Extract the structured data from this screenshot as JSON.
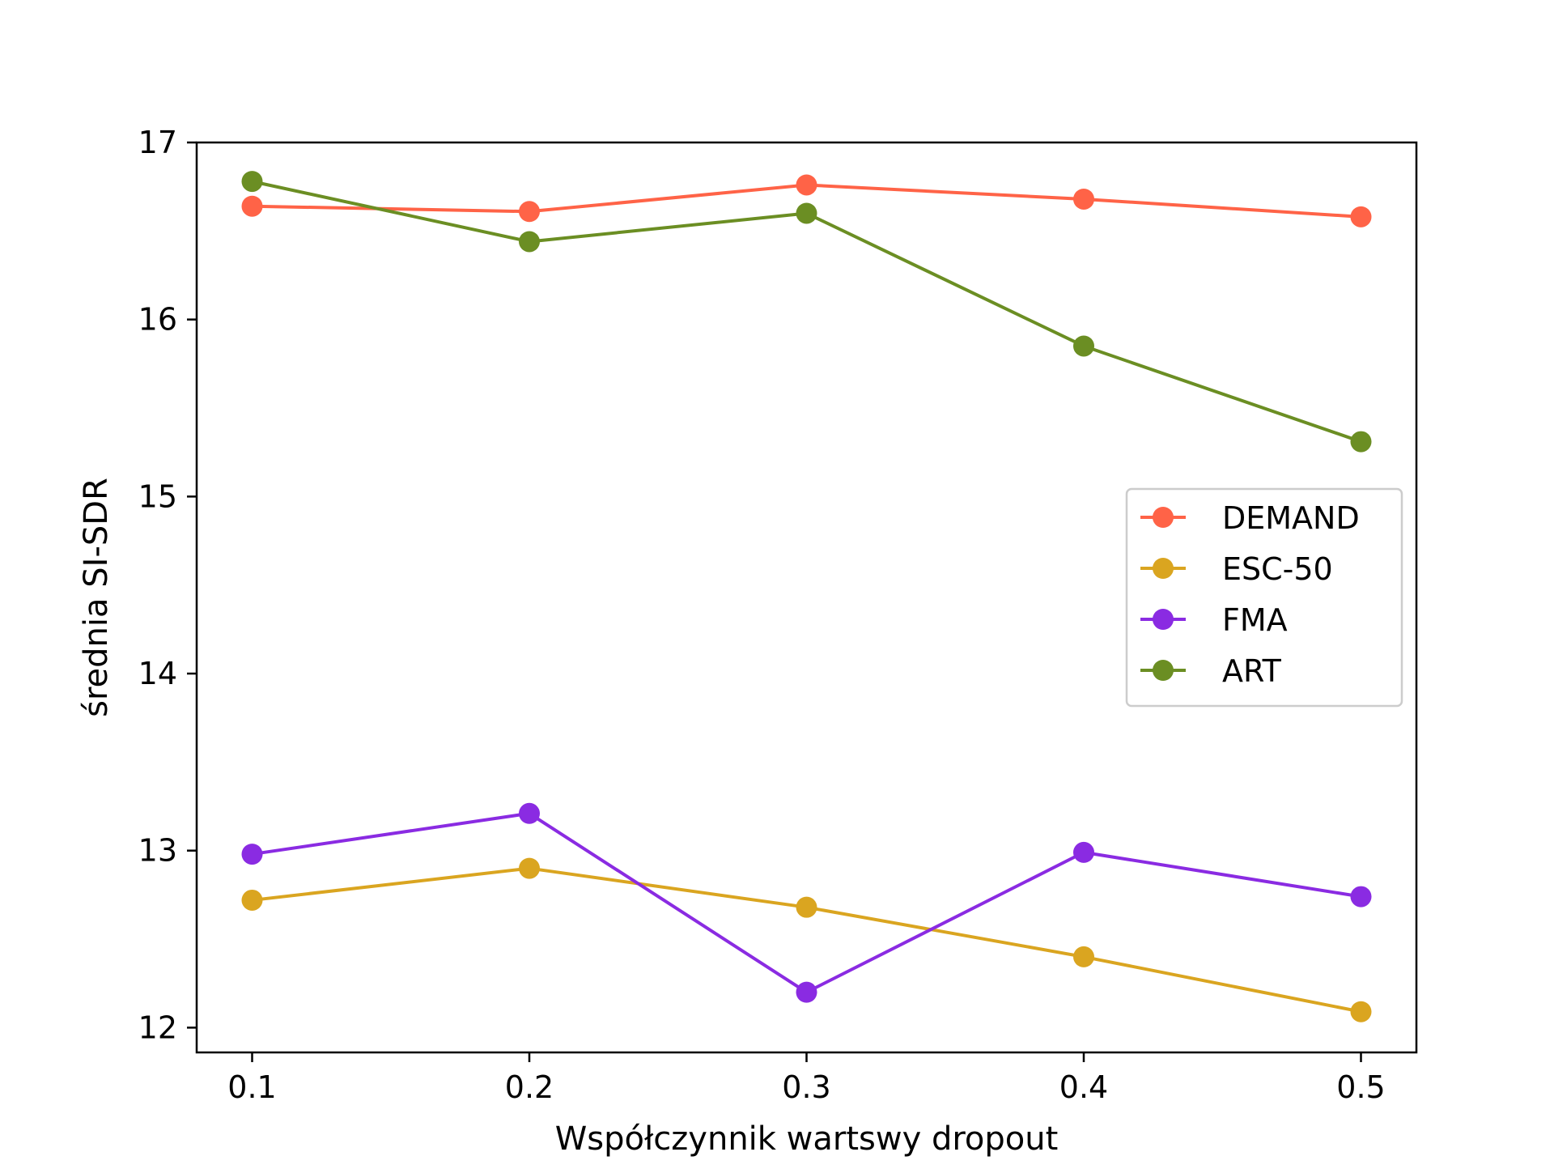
{
  "chart_data": {
    "type": "line",
    "title": "",
    "xlabel": "Współczynnik wartswy dropout",
    "ylabel": "średnia SI-SDR",
    "x": [
      0.1,
      0.2,
      0.3,
      0.4,
      0.5
    ],
    "x_tick_labels": [
      "0.1",
      "0.2",
      "0.3",
      "0.4",
      "0.5"
    ],
    "xlim": [
      0.08,
      0.52
    ],
    "ylim": [
      11.86,
      17.0
    ],
    "y_ticks": [
      12,
      13,
      14,
      15,
      16,
      17
    ],
    "y_tick_labels": [
      "12",
      "13",
      "14",
      "15",
      "16",
      "17"
    ],
    "grid": false,
    "legend_position": "center-right",
    "series": [
      {
        "name": "DEMAND",
        "color": "#ff6347",
        "marker": "circle",
        "values": [
          16.64,
          16.61,
          16.76,
          16.68,
          16.58
        ]
      },
      {
        "name": "ESC-50",
        "color": "#daa520",
        "marker": "circle",
        "values": [
          12.72,
          12.9,
          12.68,
          12.4,
          12.09
        ]
      },
      {
        "name": "FMA",
        "color": "#8a2be2",
        "marker": "circle",
        "values": [
          12.98,
          13.21,
          12.2,
          12.99,
          12.74
        ]
      },
      {
        "name": "ART",
        "color": "#6b8e23",
        "marker": "circle",
        "values": [
          16.78,
          16.44,
          16.6,
          15.85,
          15.31
        ]
      }
    ]
  }
}
